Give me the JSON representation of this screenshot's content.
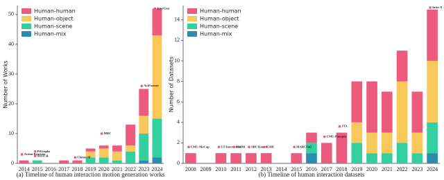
{
  "chart_data": [
    {
      "type": "bar",
      "stacked": true,
      "caption": "(a) Timeline of human interaction motion generation works",
      "ylabel": "Number of Works",
      "categories": [
        "2014",
        "2015",
        "2016",
        "2017",
        "2018",
        "2019",
        "2020",
        "2021",
        "2022",
        "2023",
        "2024"
      ],
      "series": [
        {
          "name": "Human-mix",
          "color": "#2b8cae",
          "values": [
            0,
            0,
            0,
            0,
            0,
            0,
            0,
            0,
            0,
            1,
            2
          ]
        },
        {
          "name": "Human-scene",
          "color": "#33cf9f",
          "values": [
            0,
            1,
            0,
            0,
            0,
            2,
            2,
            1,
            4,
            9,
            13
          ]
        },
        {
          "name": "Human-object",
          "color": "#f8c85a",
          "values": [
            0,
            0,
            0,
            0,
            0,
            2,
            3,
            3,
            2,
            6,
            28
          ]
        },
        {
          "name": "Human-human",
          "color": "#ec5a7e",
          "values": [
            1,
            0,
            0,
            1,
            1,
            1,
            1,
            2,
            7,
            9,
            9
          ]
        }
      ],
      "legend_order": [
        3,
        2,
        1,
        0
      ],
      "legend": "upper left",
      "ylim": [
        0,
        53
      ],
      "yticks": [
        0,
        10,
        20,
        30,
        40,
        50
      ],
      "annotations": [
        {
          "text": "Action Reaction",
          "x": "2014",
          "y": 3
        },
        {
          "text": "PiGraphs",
          "x": "2015",
          "y": 4
        },
        {
          "text": "Shi et al.",
          "x": "2015",
          "y": 2.5
        },
        {
          "text": "Chiton-M",
          "x": "2018",
          "y": 2
        },
        {
          "text": "MRC",
          "x": "2020",
          "y": 10
        },
        {
          "text": "ActFormer",
          "x": "2023",
          "y": 26
        },
        {
          "text": "InterGen",
          "x": "2024",
          "y": 52
        }
      ]
    },
    {
      "type": "bar",
      "stacked": true,
      "caption": "(b) Timeline of human interaction datasets",
      "ylabel": "Number of Datasets",
      "categories": [
        "2008",
        "2009",
        "2010",
        "2011",
        "2012",
        "2013",
        "2014",
        "2015",
        "2016",
        "2017",
        "2018",
        "2019",
        "2020",
        "2021",
        "2022",
        "2023",
        "2024"
      ],
      "series": [
        {
          "name": "Human-mix",
          "color": "#2b8cae",
          "values": [
            0,
            0,
            0,
            0,
            0,
            0,
            0,
            0,
            1,
            0,
            0,
            0,
            0,
            0,
            0,
            0,
            1
          ]
        },
        {
          "name": "Human-scene",
          "color": "#33cf9f",
          "values": [
            0,
            0,
            0,
            0,
            0,
            0,
            0,
            0,
            1,
            0,
            0,
            2,
            1,
            1,
            2,
            1,
            3
          ]
        },
        {
          "name": "Human-object",
          "color": "#f8c85a",
          "values": [
            0,
            0,
            0,
            0,
            0,
            0,
            0,
            0,
            0,
            0,
            0,
            2,
            2,
            2,
            6,
            2,
            6
          ]
        },
        {
          "name": "Human-human",
          "color": "#ec5a7e",
          "values": [
            1,
            0,
            1,
            1,
            1,
            1,
            0,
            1,
            1,
            2,
            3,
            4,
            5,
            4,
            3,
            4,
            5
          ]
        }
      ],
      "legend_order": [
        3,
        2,
        1,
        0
      ],
      "legend": "upper left",
      "ylim": [
        0,
        15.4
      ],
      "yticks": [
        0,
        2,
        4,
        6,
        8,
        10,
        12,
        14
      ],
      "annotations": [
        {
          "text": "CMU-MoCap",
          "x": "2008",
          "y": 1.6
        },
        {
          "text": "UT-Interaction",
          "x": "2010",
          "y": 1.6
        },
        {
          "text": "M3DH",
          "x": "2011",
          "y": 1.6
        },
        {
          "text": "SBU Kinect",
          "x": "2012",
          "y": 1.6
        },
        {
          "text": "K3HI",
          "x": "2013",
          "y": 1.6
        },
        {
          "text": "MARCOnI",
          "x": "2015",
          "y": 1.6
        },
        {
          "text": "CMU-Panoptic",
          "x": "2017",
          "y": 2.6
        },
        {
          "text": "JTA",
          "x": "2018",
          "y": 3.6
        },
        {
          "text": "Inter-X",
          "x": "2024",
          "y": 15.2
        }
      ]
    }
  ]
}
